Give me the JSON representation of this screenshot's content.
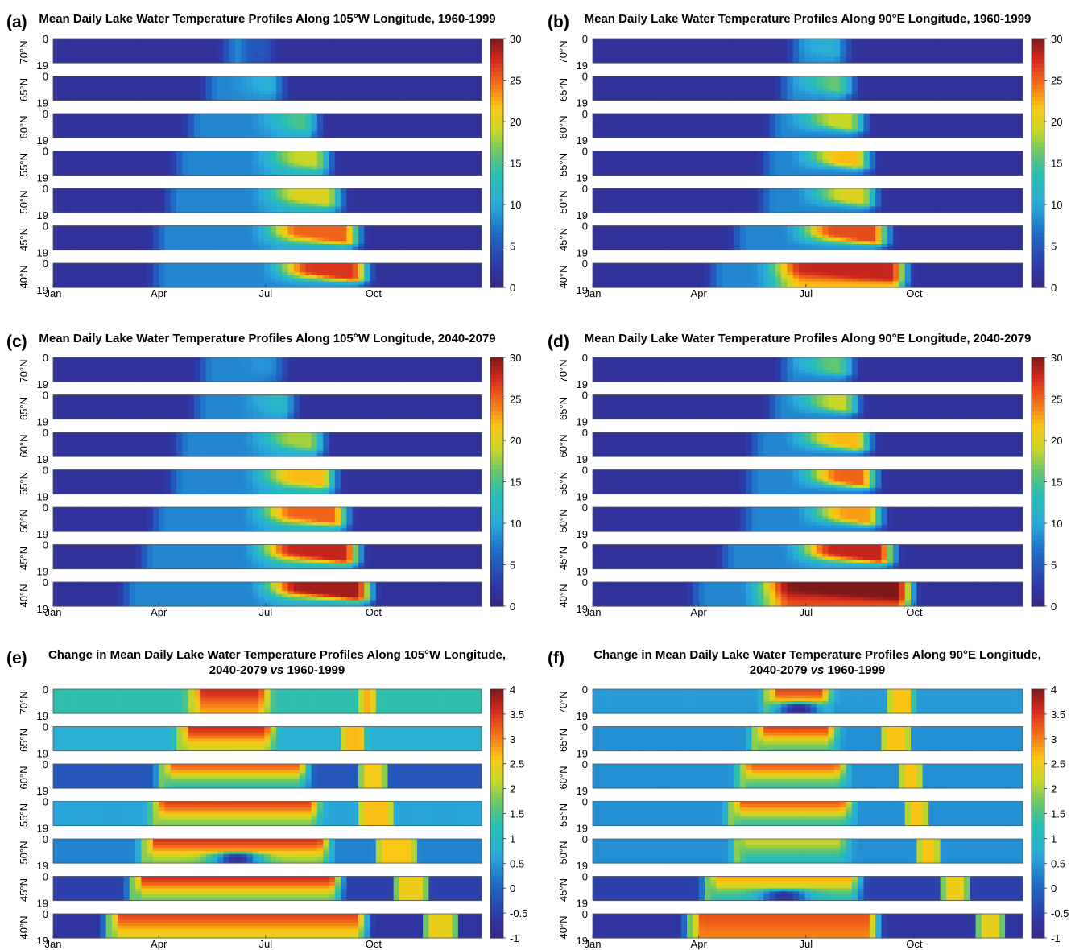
{
  "figure": {
    "type": "multi-panel heatmap",
    "month_ticks": [
      "Jan",
      "Apr",
      "Jul",
      "Oct"
    ],
    "month_tick_days": [
      1,
      91,
      182,
      274
    ],
    "depth_ticks": [
      "0",
      "19"
    ],
    "latitudes": [
      "70°N",
      "65°N",
      "60°N",
      "55°N",
      "50°N",
      "45°N",
      "40°N"
    ]
  },
  "chart_data": [
    {
      "id": "a",
      "label": "(a)",
      "type": "heatmap",
      "title": [
        "Mean Daily Lake Water Temperature Profiles Along 105°W Longitude, 1960-1999"
      ],
      "x_axis": "day of year",
      "y_axis": "depth",
      "y_range": [
        0,
        19
      ],
      "colorbar": {
        "range": [
          0,
          30
        ],
        "ticks": [
          "30",
          "25",
          "20",
          "15",
          "10",
          "5",
          "0"
        ]
      },
      "rows": [
        {
          "lat": "70°N",
          "open": [
            146,
            166
          ],
          "warm": [
            173,
            190
          ],
          "peak_surface": 7,
          "peak_bottom": 6
        },
        {
          "lat": "65°N",
          "open": [
            130,
            186
          ],
          "warm": [
            170,
            200
          ],
          "peak_surface": 11,
          "peak_bottom": 9
        },
        {
          "lat": "60°N",
          "open": [
            115,
            215
          ],
          "warm": [
            190,
            230
          ],
          "peak_surface": 15,
          "peak_bottom": 11
        },
        {
          "lat": "55°N",
          "open": [
            104,
            223
          ],
          "warm": [
            190,
            240
          ],
          "peak_surface": 19,
          "peak_bottom": 13
        },
        {
          "lat": "50°N",
          "open": [
            97,
            230
          ],
          "warm": [
            190,
            250
          ],
          "peak_surface": 20,
          "peak_bottom": 12
        },
        {
          "lat": "45°N",
          "open": [
            87,
            245
          ],
          "warm": [
            190,
            265
          ],
          "peak_surface": 25,
          "peak_bottom": 11
        },
        {
          "lat": "40°N",
          "open": [
            85,
            250
          ],
          "warm": [
            200,
            272
          ],
          "peak_surface": 27,
          "peak_bottom": 9
        }
      ]
    },
    {
      "id": "b",
      "label": "(b)",
      "type": "heatmap",
      "title": [
        "Mean Daily Lake Water Temperature Profiles Along 90°E Longitude, 1960-1999"
      ],
      "x_axis": "day of year",
      "y_axis": "depth",
      "y_range": [
        0,
        19
      ],
      "colorbar": {
        "range": [
          0,
          30
        ],
        "ticks": [
          "30",
          "25",
          "20",
          "15",
          "10",
          "5",
          "0"
        ]
      },
      "rows": [
        {
          "lat": "70°N",
          "open": [
            170,
            205
          ],
          "warm": [
            185,
            220
          ],
          "peak_surface": 11,
          "peak_bottom": 9
        },
        {
          "lat": "65°N",
          "open": [
            160,
            198
          ],
          "warm": [
            185,
            225
          ],
          "peak_surface": 16,
          "peak_bottom": 9
        },
        {
          "lat": "60°N",
          "open": [
            150,
            200
          ],
          "warm": [
            185,
            235
          ],
          "peak_surface": 19,
          "peak_bottom": 8
        },
        {
          "lat": "55°N",
          "open": [
            145,
            205
          ],
          "warm": [
            190,
            240
          ],
          "peak_surface": 22,
          "peak_bottom": 8
        },
        {
          "lat": "50°N",
          "open": [
            143,
            210
          ],
          "warm": [
            195,
            245
          ],
          "peak_surface": 20,
          "peak_bottom": 8
        },
        {
          "lat": "45°N",
          "open": [
            120,
            230
          ],
          "warm": [
            185,
            255
          ],
          "peak_surface": 26,
          "peak_bottom": 9
        },
        {
          "lat": "40°N",
          "open": [
            100,
            260
          ],
          "warm": [
            160,
            270
          ],
          "peak_surface": 28,
          "peak_bottom": 22
        }
      ]
    },
    {
      "id": "c",
      "label": "(c)",
      "type": "heatmap",
      "title": [
        "Mean Daily Lake Water Temperature Profiles Along 105°W Longitude, 2040-2079"
      ],
      "x_axis": "day of year",
      "y_axis": "depth",
      "y_range": [
        0,
        19
      ],
      "colorbar": {
        "range": [
          0,
          30
        ],
        "ticks": [
          "30",
          "25",
          "20",
          "15",
          "10",
          "5",
          "0"
        ]
      },
      "rows": [
        {
          "lat": "70°N",
          "open": [
            125,
            185
          ],
          "warm": [
            180,
            200
          ],
          "peak_surface": 10,
          "peak_bottom": 8
        },
        {
          "lat": "65°N",
          "open": [
            120,
            195
          ],
          "warm": [
            180,
            210
          ],
          "peak_surface": 13,
          "peak_bottom": 10
        },
        {
          "lat": "60°N",
          "open": [
            105,
            220
          ],
          "warm": [
            185,
            235
          ],
          "peak_surface": 18,
          "peak_bottom": 11
        },
        {
          "lat": "55°N",
          "open": [
            100,
            228
          ],
          "warm": [
            185,
            245
          ],
          "peak_surface": 22,
          "peak_bottom": 13
        },
        {
          "lat": "50°N",
          "open": [
            85,
            240
          ],
          "warm": [
            185,
            255
          ],
          "peak_surface": 25,
          "peak_bottom": 12
        },
        {
          "lat": "45°N",
          "open": [
            75,
            250
          ],
          "warm": [
            185,
            265
          ],
          "peak_surface": 28,
          "peak_bottom": 12
        },
        {
          "lat": "40°N",
          "open": [
            60,
            265
          ],
          "warm": [
            190,
            275
          ],
          "peak_surface": 29,
          "peak_bottom": 11
        }
      ]
    },
    {
      "id": "d",
      "label": "(d)",
      "type": "heatmap",
      "title": [
        "Mean Daily Lake Water Temperature Profiles Along 90°E Longitude, 2040-2079"
      ],
      "x_axis": "day of year",
      "y_axis": "depth",
      "y_range": [
        0,
        19
      ],
      "colorbar": {
        "range": [
          0,
          30
        ],
        "ticks": [
          "30",
          "25",
          "20",
          "15",
          "10",
          "5",
          "0"
        ]
      },
      "rows": [
        {
          "lat": "70°N",
          "open": [
            160,
            210
          ],
          "warm": [
            185,
            225
          ],
          "peak_surface": 16,
          "peak_bottom": 8
        },
        {
          "lat": "65°N",
          "open": [
            150,
            205
          ],
          "warm": [
            185,
            230
          ],
          "peak_surface": 19,
          "peak_bottom": 8
        },
        {
          "lat": "60°N",
          "open": [
            135,
            210
          ],
          "warm": [
            185,
            240
          ],
          "peak_surface": 22,
          "peak_bottom": 8
        },
        {
          "lat": "55°N",
          "open": [
            130,
            215
          ],
          "warm": [
            190,
            245
          ],
          "peak_surface": 25,
          "peak_bottom": 8
        },
        {
          "lat": "50°N",
          "open": [
            128,
            220
          ],
          "warm": [
            195,
            250
          ],
          "peak_surface": 23,
          "peak_bottom": 8
        },
        {
          "lat": "45°N",
          "open": [
            110,
            235
          ],
          "warm": [
            185,
            260
          ],
          "peak_surface": 28,
          "peak_bottom": 10
        },
        {
          "lat": "40°N",
          "open": [
            85,
            265
          ],
          "warm": [
            150,
            275
          ],
          "peak_surface": 30,
          "peak_bottom": 26
        }
      ]
    },
    {
      "id": "e",
      "label": "(e)",
      "type": "heatmap",
      "title": [
        "Change in Mean Daily Lake Water Temperature Profiles Along 105°W Longitude,",
        "2040-2079 vs 1960-1999"
      ],
      "x_axis": "day of year",
      "y_axis": "depth",
      "y_range": [
        0,
        19
      ],
      "colorbar": {
        "range": [
          -1,
          4
        ],
        "ticks": [
          "4",
          "3.5",
          "3",
          "2.5",
          "2",
          "1.5",
          "1",
          "0.5",
          "0",
          "-0.5",
          "-1"
        ]
      },
      "rows": [
        {
          "lat": "70°N",
          "base": 1.3,
          "open": [
            120,
            181
          ],
          "close": [
            266,
            270
          ],
          "warm_surface": 3.6,
          "warm_bottom": 2.8,
          "cold_pocket": 0
        },
        {
          "lat": "65°N",
          "base": 0.8,
          "open": [
            110,
            186
          ],
          "close": [
            250,
            262
          ],
          "warm_surface": 3.6,
          "warm_bottom": 2.2,
          "cold_pocket": 0
        },
        {
          "lat": "60°N",
          "base": -0.2,
          "open": [
            95,
            215
          ],
          "close": [
            265,
            280
          ],
          "warm_surface": 3.2,
          "warm_bottom": 1.3,
          "cold_pocket": 0
        },
        {
          "lat": "55°N",
          "base": 0.6,
          "open": [
            88,
            225
          ],
          "close": [
            265,
            285
          ],
          "warm_surface": 3.4,
          "warm_bottom": 1.8,
          "cold_pocket": 0
        },
        {
          "lat": "50°N",
          "base": 0.3,
          "open": [
            80,
            233
          ],
          "close": [
            280,
            305
          ],
          "warm_surface": 3.5,
          "warm_bottom": 1.9,
          "cold_pocket": -0.8
        },
        {
          "lat": "45°N",
          "base": -0.5,
          "open": [
            70,
            243
          ],
          "close": [
            295,
            315
          ],
          "warm_surface": 3.6,
          "warm_bottom": 1.8,
          "cold_pocket": 0
        },
        {
          "lat": "40°N",
          "base": -0.7,
          "open": [
            50,
            265
          ],
          "close": [
            320,
            340
          ],
          "warm_surface": 3.4,
          "warm_bottom": 2.4,
          "cold_pocket": 0
        }
      ]
    },
    {
      "id": "f",
      "label": "(f)",
      "type": "heatmap",
      "title": [
        "Change in Mean Daily Lake Water Temperature Profiles Along 90°E Longitude,",
        "2040-2079 vs 1960-1999"
      ],
      "x_axis": "day of year",
      "y_axis": "depth",
      "y_range": [
        0,
        19
      ],
      "colorbar": {
        "range": [
          -1,
          4
        ],
        "ticks": [
          "4",
          "3.5",
          "3",
          "2.5",
          "2",
          "1.5",
          "1",
          "0.5",
          "0",
          "-0.5",
          "-1"
        ]
      },
      "rows": [
        {
          "lat": "70°N",
          "base": 0.5,
          "open": [
            150,
            200
          ],
          "close": [
            255,
            268
          ],
          "warm_surface": 3.4,
          "warm_bottom": 1.6,
          "cold_pocket": -0.9
        },
        {
          "lat": "65°N",
          "base": 0.4,
          "open": [
            140,
            205
          ],
          "close": [
            250,
            265
          ],
          "warm_surface": 3.4,
          "warm_bottom": 1.6,
          "cold_pocket": 0
        },
        {
          "lat": "60°N",
          "base": 0.4,
          "open": [
            128,
            213
          ],
          "close": [
            265,
            275
          ],
          "warm_surface": 3.2,
          "warm_bottom": 1.4,
          "cold_pocket": 0
        },
        {
          "lat": "55°N",
          "base": 0.4,
          "open": [
            120,
            218
          ],
          "close": [
            270,
            280
          ],
          "warm_surface": 3.2,
          "warm_bottom": 1.4,
          "cold_pocket": 0
        },
        {
          "lat": "50°N",
          "base": 0.4,
          "open": [
            125,
            215
          ],
          "close": [
            280,
            290
          ],
          "warm_surface": 2.2,
          "warm_bottom": 1.1,
          "cold_pocket": 0
        },
        {
          "lat": "45°N",
          "base": -0.5,
          "open": [
            100,
            225
          ],
          "close": [
            300,
            315
          ],
          "warm_surface": 2.8,
          "warm_bottom": 1.2,
          "cold_pocket": -0.8
        },
        {
          "lat": "40°N",
          "base": -0.7,
          "open": [
            85,
            240
          ],
          "close": [
            330,
            345
          ],
          "warm_surface": 3.3,
          "warm_bottom": 3.0,
          "cold_pocket": 0
        }
      ]
    }
  ]
}
